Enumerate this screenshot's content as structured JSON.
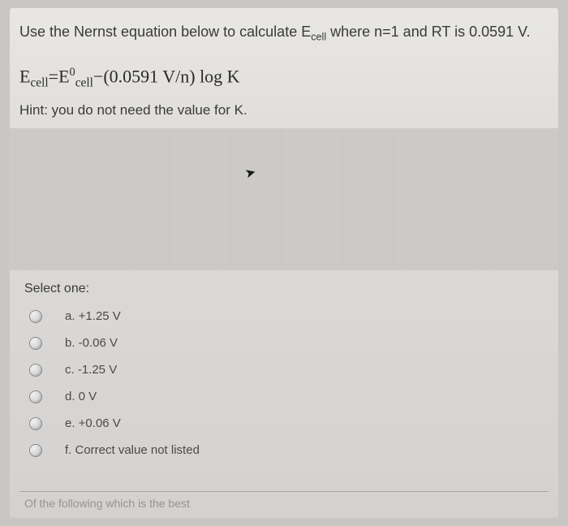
{
  "question": {
    "prompt_before": "Use the Nernst equation below to calculate E",
    "prompt_sub": "cell",
    "prompt_after": " where n=1 and RT is 0.0591 V."
  },
  "equation": {
    "E": "E",
    "sub1": "cell",
    "eq": "=E",
    "sup": "0",
    "sub2": "cell",
    "rest": "−(0.0591 V/n) log K"
  },
  "hint": "Hint: you do not need the value for K.",
  "select_label": "Select one:",
  "options": [
    {
      "label": "a. +1.25 V"
    },
    {
      "label": "b. -0.06 V"
    },
    {
      "label": "c. -1.25 V"
    },
    {
      "label": "d. 0 V"
    },
    {
      "label": "e. +0.06 V"
    },
    {
      "label": "f. Correct value not listed"
    }
  ],
  "cutoff_text": "Of the following which is the best"
}
